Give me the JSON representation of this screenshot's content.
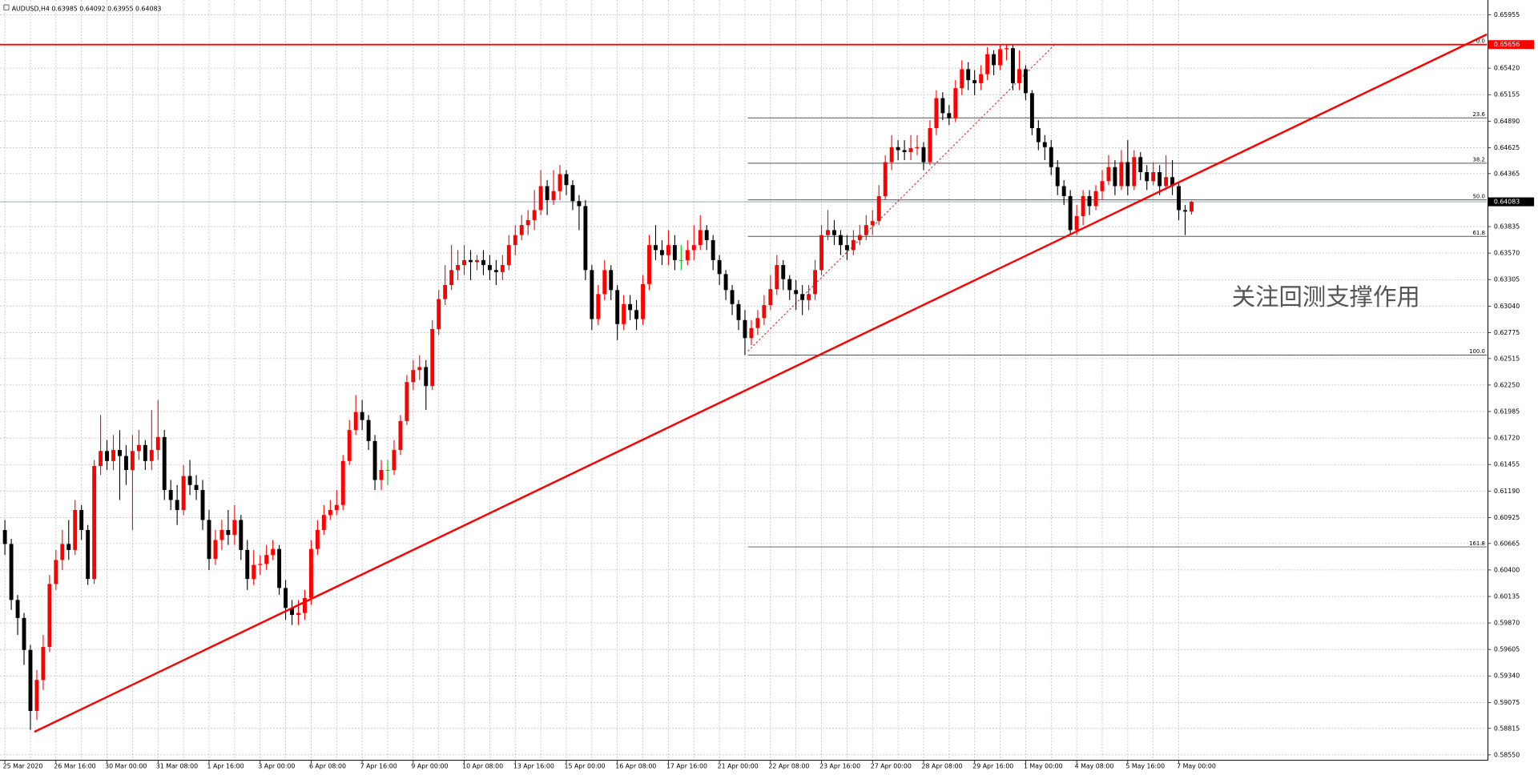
{
  "chart_data": {
    "type": "candlestick",
    "symbol": "AUDUSD,H4",
    "categories": [
      "25 Mar 2020",
      null,
      null,
      null,
      null,
      null,
      null,
      null,
      "26 Mar 16:00",
      null,
      null,
      null,
      null,
      null,
      null,
      null,
      "30 Mar 00:00",
      null,
      null,
      null,
      null,
      null,
      null,
      null,
      "31 Mar 08:00",
      null,
      null,
      null,
      null,
      null,
      null,
      null,
      "1 Apr 16:00",
      null,
      null,
      null,
      null,
      null,
      null,
      null,
      "3 Apr 00:00",
      null,
      null,
      null,
      null,
      null,
      null,
      null,
      "6 Apr 08:00",
      null,
      null,
      null,
      null,
      null,
      null,
      null,
      "7 Apr 16:00",
      null,
      null,
      null,
      null,
      null,
      null,
      null,
      "9 Apr 00:00",
      null,
      null,
      null,
      null,
      null,
      null,
      null,
      "10 Apr 08:00",
      null,
      null,
      null,
      null,
      null,
      null,
      null,
      "13 Apr 16:00",
      null,
      null,
      null,
      null,
      null,
      null,
      null,
      "15 Apr 00:00",
      null,
      null,
      null,
      null,
      null,
      null,
      null,
      "16 Apr 08:00",
      null,
      null,
      null,
      null,
      null,
      null,
      null,
      "17 Apr 16:00",
      null,
      null,
      null,
      null,
      null,
      null,
      null,
      "21 Apr 00:00",
      null,
      null,
      null,
      null,
      null,
      null,
      null,
      "22 Apr 08:00",
      null,
      null,
      null,
      null,
      null,
      null,
      null,
      "23 Apr 16:00",
      null,
      null,
      null,
      null,
      null,
      null,
      null,
      "27 Apr 00:00",
      null,
      null,
      null,
      null,
      null,
      null,
      null,
      "28 Apr 08:00",
      null,
      null,
      null,
      null,
      null,
      null,
      null,
      "29 Apr 16:00",
      null,
      null,
      null,
      null,
      null,
      null,
      null,
      "1 May 00:00",
      null,
      null,
      null,
      null,
      null,
      null,
      null,
      "4 May 08:00",
      null,
      null,
      null,
      null,
      null,
      null,
      null,
      "5 May 16:00",
      null,
      null,
      null,
      null,
      null,
      null,
      null,
      "7 May 00:00",
      null,
      null
    ],
    "open": [
      0.608,
      0.6066,
      0.601,
      0.5992,
      0.596,
      0.5899,
      0.593,
      0.5963,
      0.6026,
      0.605,
      0.6066,
      0.606,
      0.61,
      0.608,
      0.6031,
      0.6144,
      0.6159,
      0.6149,
      0.616,
      0.6154,
      0.614,
      0.6159,
      0.6165,
      0.6149,
      0.616,
      0.6173,
      0.612,
      0.611,
      0.61,
      0.6134,
      0.6125,
      0.612,
      0.609,
      0.6051,
      0.607,
      0.608,
      0.6075,
      0.609,
      0.606,
      0.6031,
      0.6045,
      0.6046,
      0.6055,
      0.6061,
      0.6022,
      0.6002,
      0.5995,
      0.5997,
      0.6012,
      0.6061,
      0.608,
      0.6095,
      0.61,
      0.6105,
      0.6149,
      0.618,
      0.6198,
      0.619,
      0.6169,
      0.613,
      0.614,
      0.614,
      0.616,
      0.6189,
      0.6228,
      0.624,
      0.6243,
      0.6224,
      0.6281,
      0.6311,
      0.6325,
      0.634,
      0.6345,
      0.635,
      0.6348,
      0.635,
      0.6345,
      0.634,
      0.6338,
      0.6345,
      0.6365,
      0.6375,
      0.6385,
      0.639,
      0.64,
      0.6424,
      0.641,
      0.6419,
      0.6436,
      0.6425,
      0.6409,
      0.6404,
      0.634,
      0.6291,
      0.6316,
      0.634,
      0.632,
      0.6286,
      0.6306,
      0.63,
      0.6291,
      0.6326,
      0.6365,
      0.636,
      0.6355,
      0.6365,
      0.635,
      0.635,
      0.636,
      0.6365,
      0.638,
      0.637,
      0.635,
      0.6336,
      0.632,
      0.6306,
      0.629,
      0.6272,
      0.6282,
      0.6292,
      0.6305,
      0.6321,
      0.6345,
      0.6331,
      0.632,
      0.6316,
      0.631,
      0.6316,
      0.634,
      0.6375,
      0.638,
      0.6375,
      0.6365,
      0.636,
      0.637,
      0.6375,
      0.6385,
      0.6389,
      0.6414,
      0.6448,
      0.6463,
      0.646,
      0.6458,
      0.6462,
      0.6463,
      0.6448,
      0.6482,
      0.6512,
      0.6497,
      0.6492,
      0.6522,
      0.6541,
      0.653,
      0.6527,
      0.6536,
      0.6556,
      0.6545,
      0.6561,
      0.6562,
      0.6527,
      0.6541,
      0.6517,
      0.6482,
      0.6468,
      0.6463,
      0.6443,
      0.6424,
      0.6414,
      0.638,
      0.6394,
      0.6414,
      0.6404,
      0.6419,
      0.6429,
      0.6443,
      0.6424,
      0.6448,
      0.6424,
      0.6453,
      0.6438,
      0.6429,
      0.6438,
      0.6424,
      0.6433,
      0.6424,
      0.64,
      0.63985
    ],
    "high": [
      0.609,
      0.6071,
      0.6015,
      0.5997,
      0.5965,
      0.594,
      0.5975,
      0.6035,
      0.606,
      0.608,
      0.609,
      0.611,
      0.6105,
      0.6085,
      0.615,
      0.6195,
      0.617,
      0.6175,
      0.618,
      0.6165,
      0.6175,
      0.618,
      0.617,
      0.62,
      0.621,
      0.618,
      0.613,
      0.6125,
      0.6145,
      0.615,
      0.6135,
      0.613,
      0.61,
      0.608,
      0.609,
      0.61,
      0.6105,
      0.6095,
      0.607,
      0.606,
      0.6055,
      0.6065,
      0.607,
      0.6065,
      0.603,
      0.601,
      0.601,
      0.602,
      0.607,
      0.609,
      0.6105,
      0.611,
      0.612,
      0.6155,
      0.619,
      0.6215,
      0.621,
      0.6195,
      0.6175,
      0.615,
      0.615,
      0.617,
      0.6195,
      0.6235,
      0.625,
      0.6255,
      0.625,
      0.629,
      0.632,
      0.6345,
      0.6365,
      0.636,
      0.6365,
      0.636,
      0.6355,
      0.636,
      0.6355,
      0.635,
      0.6355,
      0.6375,
      0.6385,
      0.6395,
      0.64,
      0.642,
      0.644,
      0.643,
      0.644,
      0.6445,
      0.644,
      0.643,
      0.6415,
      0.641,
      0.6345,
      0.6325,
      0.635,
      0.6345,
      0.6325,
      0.6315,
      0.6315,
      0.631,
      0.6335,
      0.6375,
      0.6385,
      0.637,
      0.638,
      0.6375,
      0.6365,
      0.637,
      0.6385,
      0.6395,
      0.6385,
      0.6375,
      0.6355,
      0.634,
      0.6325,
      0.631,
      0.63,
      0.629,
      0.63,
      0.6315,
      0.6335,
      0.6355,
      0.635,
      0.6335,
      0.633,
      0.6325,
      0.6325,
      0.635,
      0.6385,
      0.64,
      0.639,
      0.638,
      0.6375,
      0.638,
      0.6385,
      0.6395,
      0.64,
      0.6425,
      0.6455,
      0.6475,
      0.647,
      0.647,
      0.6475,
      0.6475,
      0.6468,
      0.649,
      0.652,
      0.6518,
      0.6505,
      0.653,
      0.655,
      0.6548,
      0.654,
      0.6545,
      0.6563,
      0.656,
      0.6565,
      0.65656,
      0.6566,
      0.656,
      0.6545,
      0.652,
      0.649,
      0.6475,
      0.647,
      0.645,
      0.643,
      0.642,
      0.6405,
      0.642,
      0.642,
      0.6425,
      0.644,
      0.6455,
      0.645,
      0.646,
      0.647,
      0.646,
      0.6458,
      0.6445,
      0.6448,
      0.6445,
      0.6455,
      0.645,
      0.6428,
      0.6405,
      0.64092
    ],
    "low": [
      0.6055,
      0.6,
      0.5975,
      0.5945,
      0.588,
      0.589,
      0.592,
      0.5958,
      0.602,
      0.604,
      0.605,
      0.6055,
      0.607,
      0.6025,
      0.6026,
      0.6135,
      0.614,
      0.614,
      0.611,
      0.6125,
      0.608,
      0.615,
      0.614,
      0.614,
      0.615,
      0.611,
      0.61,
      0.6085,
      0.6095,
      0.6115,
      0.611,
      0.608,
      0.604,
      0.6045,
      0.606,
      0.6065,
      0.6065,
      0.605,
      0.602,
      0.6025,
      0.6035,
      0.604,
      0.605,
      0.6015,
      0.599,
      0.5985,
      0.5985,
      0.599,
      0.6005,
      0.6055,
      0.6075,
      0.609,
      0.6095,
      0.61,
      0.6145,
      0.6175,
      0.618,
      0.616,
      0.612,
      0.612,
      0.6125,
      0.6135,
      0.6155,
      0.6185,
      0.622,
      0.623,
      0.62,
      0.622,
      0.6275,
      0.6305,
      0.632,
      0.633,
      0.6335,
      0.633,
      0.634,
      0.6335,
      0.633,
      0.6325,
      0.633,
      0.634,
      0.6355,
      0.637,
      0.6375,
      0.638,
      0.6395,
      0.6395,
      0.6405,
      0.641,
      0.6415,
      0.64,
      0.638,
      0.633,
      0.628,
      0.6285,
      0.631,
      0.631,
      0.627,
      0.628,
      0.629,
      0.628,
      0.6285,
      0.632,
      0.635,
      0.6345,
      0.6345,
      0.634,
      0.634,
      0.6345,
      0.635,
      0.636,
      0.636,
      0.634,
      0.6325,
      0.631,
      0.6295,
      0.628,
      0.6255,
      0.6265,
      0.6275,
      0.6285,
      0.63,
      0.6315,
      0.632,
      0.631,
      0.63,
      0.6295,
      0.63,
      0.631,
      0.6335,
      0.637,
      0.6365,
      0.6355,
      0.635,
      0.6355,
      0.6365,
      0.637,
      0.6375,
      0.6385,
      0.641,
      0.644,
      0.645,
      0.645,
      0.645,
      0.6455,
      0.644,
      0.6445,
      0.6475,
      0.649,
      0.6485,
      0.6488,
      0.6515,
      0.652,
      0.6515,
      0.652,
      0.653,
      0.6535,
      0.654,
      0.655,
      0.652,
      0.652,
      0.651,
      0.6475,
      0.646,
      0.645,
      0.6435,
      0.6415,
      0.6405,
      0.6375,
      0.6375,
      0.6385,
      0.6395,
      0.64,
      0.641,
      0.6425,
      0.6415,
      0.642,
      0.6415,
      0.642,
      0.643,
      0.642,
      0.6425,
      0.6415,
      0.642,
      0.6415,
      0.639,
      0.6375,
      0.63955
    ],
    "close": [
      0.6066,
      0.601,
      0.5992,
      0.596,
      0.5899,
      0.593,
      0.5963,
      0.6026,
      0.605,
      0.6066,
      0.606,
      0.61,
      0.608,
      0.6031,
      0.6144,
      0.6159,
      0.6149,
      0.616,
      0.6154,
      0.614,
      0.6159,
      0.6165,
      0.6149,
      0.616,
      0.6173,
      0.612,
      0.611,
      0.61,
      0.6134,
      0.6125,
      0.612,
      0.609,
      0.6051,
      0.607,
      0.608,
      0.6075,
      0.609,
      0.606,
      0.6031,
      0.6045,
      0.6046,
      0.6055,
      0.6061,
      0.6022,
      0.6002,
      0.5995,
      0.5997,
      0.6012,
      0.6061,
      0.608,
      0.6095,
      0.61,
      0.6105,
      0.6149,
      0.618,
      0.6198,
      0.619,
      0.6169,
      0.613,
      0.614,
      0.614,
      0.616,
      0.6189,
      0.6228,
      0.624,
      0.6243,
      0.6224,
      0.6281,
      0.6311,
      0.6325,
      0.634,
      0.6345,
      0.635,
      0.6348,
      0.635,
      0.6345,
      0.634,
      0.6338,
      0.6345,
      0.6365,
      0.6375,
      0.6385,
      0.639,
      0.64,
      0.6424,
      0.641,
      0.6419,
      0.6436,
      0.6425,
      0.6409,
      0.6404,
      0.634,
      0.6291,
      0.6316,
      0.634,
      0.632,
      0.6286,
      0.6306,
      0.63,
      0.6291,
      0.6326,
      0.6365,
      0.636,
      0.6355,
      0.6365,
      0.635,
      0.635,
      0.636,
      0.6365,
      0.638,
      0.637,
      0.635,
      0.6336,
      0.632,
      0.6306,
      0.629,
      0.6272,
      0.6282,
      0.6292,
      0.6305,
      0.6321,
      0.6345,
      0.6331,
      0.632,
      0.6316,
      0.631,
      0.6316,
      0.634,
      0.6375,
      0.638,
      0.6375,
      0.6365,
      0.636,
      0.637,
      0.6375,
      0.6385,
      0.6389,
      0.6414,
      0.6448,
      0.6463,
      0.646,
      0.6458,
      0.6462,
      0.6463,
      0.6448,
      0.6482,
      0.6512,
      0.6497,
      0.6492,
      0.6522,
      0.6541,
      0.653,
      0.6527,
      0.6536,
      0.6556,
      0.6545,
      0.6561,
      0.6562,
      0.6527,
      0.6541,
      0.6517,
      0.6482,
      0.6468,
      0.6463,
      0.6443,
      0.6424,
      0.6414,
      0.638,
      0.6394,
      0.6414,
      0.6404,
      0.6419,
      0.6429,
      0.6443,
      0.6424,
      0.6448,
      0.6424,
      0.6453,
      0.6438,
      0.6429,
      0.6438,
      0.6424,
      0.6433,
      0.6424,
      0.64,
      0.63985,
      0.64083
    ],
    "up_color": "#ff0000",
    "down_color": "#000000",
    "doji_color": "#00c000",
    "ylim": [
      0.58496,
      0.66102
    ],
    "yticks": [
      0.65955,
      {
        "value": 0.6542,
        "label": "0.65420"
      },
      0.65155,
      {
        "value": 0.6489,
        "label": "0.64890"
      },
      0.64625,
      0.64365,
      0.63835,
      {
        "value": 0.6357,
        "label": "0.63570"
      },
      0.63305,
      {
        "value": 0.6304,
        "label": "0.63040"
      },
      0.62775,
      0.62515,
      {
        "value": 0.6225,
        "label": "0.62250"
      },
      0.61985,
      {
        "value": 0.6172,
        "label": "0.61720"
      },
      0.61455,
      {
        "value": 0.6119,
        "label": "0.61190"
      },
      0.60925,
      0.60665,
      {
        "value": 0.604,
        "label": "0.60400"
      },
      0.60135,
      {
        "value": 0.5987,
        "label": "0.59870"
      },
      0.59605,
      {
        "value": 0.5934,
        "label": "0.59340"
      },
      0.59075,
      0.58815,
      {
        "value": 0.5855,
        "label": "0.58550"
      }
    ],
    "grid": true,
    "resistance": {
      "value": 0.65656,
      "color": "#ff0000"
    },
    "fibonacci": [
      {
        "label": "0.0",
        "value": 0.65656
      },
      {
        "label": "23.6",
        "value": 0.64923
      },
      {
        "label": "38.2",
        "value": 0.64469
      },
      {
        "label": "50.0",
        "value": 0.64103
      },
      {
        "label": "61.8",
        "value": 0.63737
      },
      {
        "label": "100.0",
        "value": 0.6255
      },
      {
        "label": "161.8",
        "value": 0.60631
      }
    ],
    "annotation": "关注回测支撑作用"
  }
}
